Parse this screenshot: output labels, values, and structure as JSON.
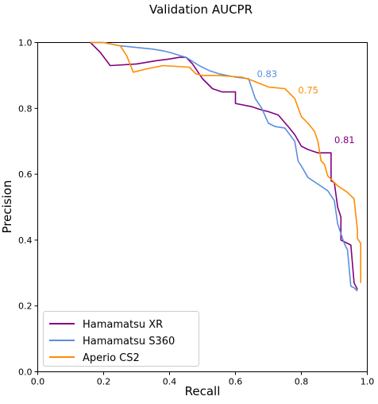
{
  "chart_data": {
    "type": "line",
    "title": "Validation AUCPR",
    "xlabel": "Recall",
    "ylabel": "Precision",
    "xlim": [
      0.0,
      1.0
    ],
    "ylim": [
      0.0,
      1.0
    ],
    "xticks": [
      "0.0",
      "0.2",
      "0.4",
      "0.6",
      "0.8",
      "1.0"
    ],
    "yticks": [
      "0.0",
      "0.2",
      "0.4",
      "0.6",
      "0.8",
      "1.0"
    ],
    "grid": false,
    "legend_position": "bottom-left",
    "series": [
      {
        "name": "Hamamatsu XR",
        "color": "#800080",
        "auc_label": "0.81",
        "label_at": [
          0.9,
          0.695
        ],
        "x": [
          0.16,
          0.19,
          0.22,
          0.3,
          0.36,
          0.4,
          0.43,
          0.45,
          0.47,
          0.5,
          0.53,
          0.56,
          0.59,
          0.6,
          0.6,
          0.65,
          0.68,
          0.7,
          0.73,
          0.76,
          0.78,
          0.8,
          0.82,
          0.85,
          0.89,
          0.89,
          0.9,
          0.91,
          0.92,
          0.92,
          0.95,
          0.96,
          0.97
        ],
        "y": [
          1.0,
          0.97,
          0.93,
          0.935,
          0.945,
          0.95,
          0.955,
          0.955,
          0.935,
          0.89,
          0.86,
          0.85,
          0.85,
          0.85,
          0.815,
          0.805,
          0.795,
          0.79,
          0.78,
          0.745,
          0.72,
          0.685,
          0.675,
          0.665,
          0.665,
          0.58,
          0.575,
          0.5,
          0.47,
          0.4,
          0.385,
          0.27,
          0.25
        ]
      },
      {
        "name": "Hamamatsu S360",
        "color": "#5b8ede",
        "auc_label": "0.83",
        "label_at": [
          0.665,
          0.895
        ],
        "x": [
          0.16,
          0.2,
          0.25,
          0.3,
          0.35,
          0.38,
          0.4,
          0.45,
          0.49,
          0.52,
          0.55,
          0.6,
          0.64,
          0.66,
          0.68,
          0.7,
          0.72,
          0.75,
          0.78,
          0.79,
          0.8,
          0.82,
          0.85,
          0.88,
          0.9,
          0.91,
          0.92,
          0.93,
          0.94,
          0.95,
          0.96,
          0.97
        ],
        "y": [
          1.0,
          1.0,
          0.99,
          0.985,
          0.98,
          0.975,
          0.97,
          0.955,
          0.93,
          0.915,
          0.905,
          0.895,
          0.89,
          0.83,
          0.8,
          0.755,
          0.745,
          0.74,
          0.7,
          0.64,
          0.625,
          0.59,
          0.57,
          0.55,
          0.52,
          0.45,
          0.42,
          0.39,
          0.37,
          0.26,
          0.255,
          0.245
        ]
      },
      {
        "name": "Aperio CS2",
        "color": "#ff8c00",
        "auc_label": "0.75",
        "label_at": [
          0.79,
          0.845
        ],
        "x": [
          0.16,
          0.2,
          0.25,
          0.27,
          0.29,
          0.33,
          0.38,
          0.46,
          0.48,
          0.5,
          0.55,
          0.62,
          0.65,
          0.7,
          0.75,
          0.78,
          0.8,
          0.82,
          0.84,
          0.85,
          0.86,
          0.87,
          0.88,
          0.9,
          0.91,
          0.94,
          0.96,
          0.97,
          0.97,
          0.98,
          0.98
        ],
        "y": [
          1.0,
          1.0,
          0.99,
          0.96,
          0.91,
          0.92,
          0.93,
          0.925,
          0.905,
          0.9,
          0.9,
          0.895,
          0.885,
          0.865,
          0.86,
          0.83,
          0.775,
          0.755,
          0.73,
          0.7,
          0.64,
          0.63,
          0.595,
          0.575,
          0.565,
          0.545,
          0.525,
          0.43,
          0.405,
          0.39,
          0.27
        ]
      }
    ]
  }
}
